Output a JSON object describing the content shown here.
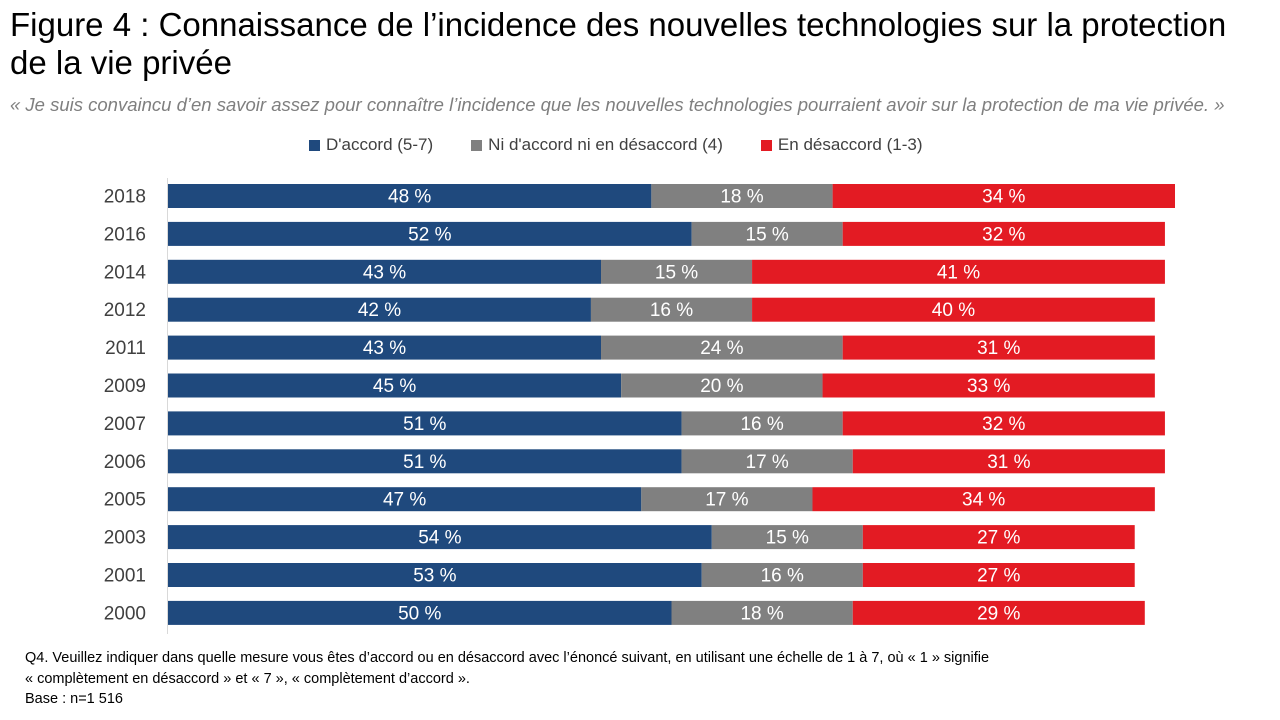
{
  "title": "Figure 4 : Connaissance de l’incidence des nouvelles technologies sur la protection de la vie privée",
  "subtitle": "« Je suis convaincu d’en savoir assez pour connaître l’incidence que les nouvelles technologies pourraient avoir sur la protection de ma vie privée. »",
  "legend": [
    {
      "label": "D'accord (5-7)",
      "color": "#1f497d"
    },
    {
      "label": "Ni d'accord ni en désaccord (4)",
      "color": "#808080"
    },
    {
      "label": "En désaccord (1-3)",
      "color": "#e31b23"
    }
  ],
  "footnote": {
    "line1": "Q4. Veuillez indiquer dans quelle mesure vous êtes d’accord ou en désaccord avec l’énoncé suivant, en utilisant une échelle de 1 à 7, où « 1 » signifie",
    "line2": "« complètement en désaccord » et « 7 », « complètement d’accord ».",
    "line3": "Base : n=1 516"
  },
  "chart_data": {
    "type": "bar",
    "orientation": "horizontal",
    "stacked": true,
    "categories": [
      "2018",
      "2016",
      "2014",
      "2012",
      "2011",
      "2009",
      "2007",
      "2006",
      "2005",
      "2003",
      "2001",
      "2000"
    ],
    "series": [
      {
        "name": "D'accord (5-7)",
        "color": "#1f497d",
        "values": [
          48,
          52,
          43,
          42,
          43,
          45,
          51,
          51,
          47,
          54,
          53,
          50
        ]
      },
      {
        "name": "Ni d'accord ni en désaccord (4)",
        "color": "#808080",
        "values": [
          18,
          15,
          15,
          16,
          24,
          20,
          16,
          17,
          17,
          15,
          16,
          18
        ]
      },
      {
        "name": "En désaccord (1-3)",
        "color": "#e31b23",
        "values": [
          34,
          32,
          41,
          40,
          31,
          33,
          32,
          31,
          34,
          27,
          27,
          29
        ]
      }
    ],
    "value_suffix": " %",
    "xlim": [
      0,
      100
    ],
    "legend_position": "top"
  }
}
